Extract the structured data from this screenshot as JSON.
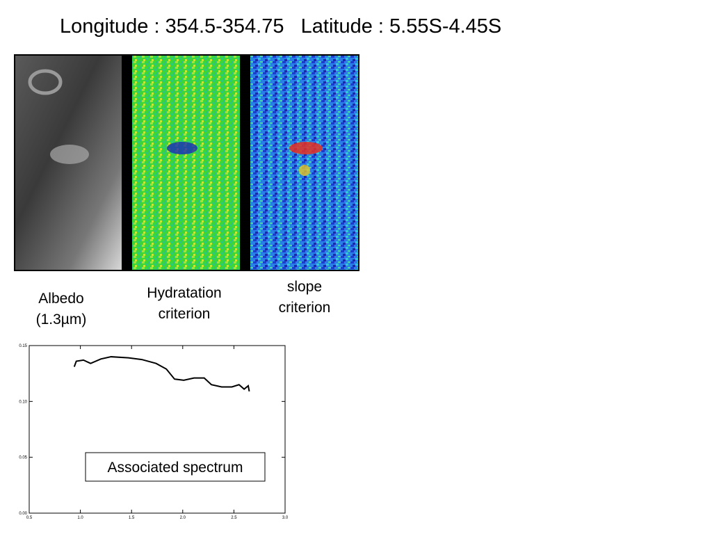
{
  "title": "Longitude : 354.5-354.75   Latitude : 5.55S-4.45S",
  "captions": {
    "albedo": [
      "Albedo",
      "(1.3µm)"
    ],
    "hydratation": [
      "Hydratation",
      "criterion"
    ],
    "slope": [
      "slope",
      "criterion"
    ]
  },
  "chart_data": {
    "type": "line",
    "annotation": "Associated spectrum",
    "x": [
      0.94,
      0.96,
      1.03,
      1.1,
      1.2,
      1.3,
      1.47,
      1.6,
      1.74,
      1.84,
      1.92,
      2.01,
      2.11,
      2.21,
      2.28,
      2.38,
      2.48,
      2.55,
      2.6,
      2.64,
      2.65
    ],
    "values": [
      0.131,
      0.136,
      0.137,
      0.134,
      0.138,
      0.14,
      0.139,
      0.1375,
      0.134,
      0.129,
      0.12,
      0.119,
      0.121,
      0.121,
      0.115,
      0.113,
      0.113,
      0.115,
      0.111,
      0.114,
      0.109
    ],
    "color": "#000000",
    "xlim": [
      0.5,
      3.0
    ],
    "xticks": [
      0.5,
      {
        "value": 1,
        "label": "1.0"
      },
      1.5,
      {
        "value": 2,
        "label": "2.0"
      },
      2.5,
      {
        "value": 3,
        "label": "3.0"
      }
    ],
    "ylim": [
      0,
      0.15
    ],
    "yticks": [
      {
        "value": 0,
        "label": "0.00"
      },
      0.05,
      {
        "value": 0.1,
        "label": "0.10"
      },
      0.15
    ]
  }
}
